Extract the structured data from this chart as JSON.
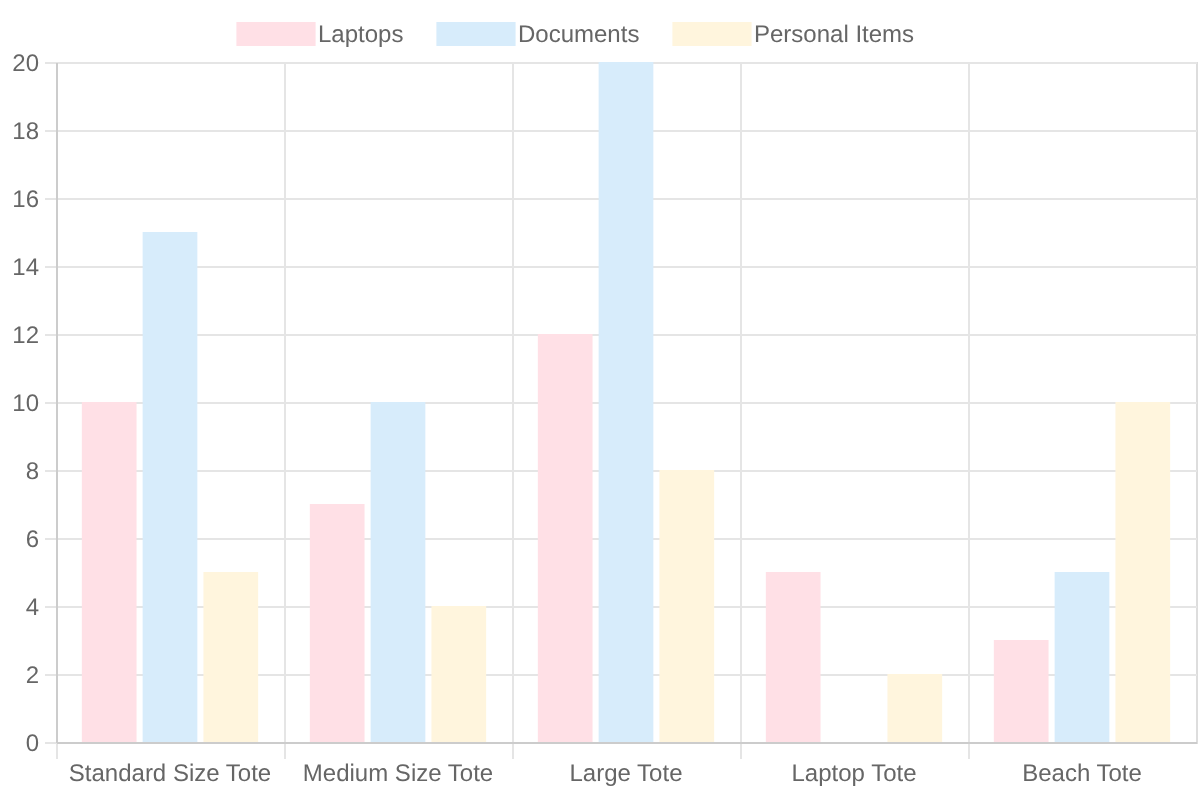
{
  "chart_data": {
    "type": "bar",
    "categories": [
      "Standard Size Tote",
      "Medium Size Tote",
      "Large Tote",
      "Laptop Tote",
      "Beach Tote"
    ],
    "series": [
      {
        "name": "Laptops",
        "color": "#ffe0e6",
        "values": [
          10,
          7,
          12,
          5,
          3
        ]
      },
      {
        "name": "Documents",
        "color": "#d7ecfb",
        "values": [
          15,
          10,
          20,
          0,
          5
        ]
      },
      {
        "name": "Personal Items",
        "color": "#fff5dd",
        "values": [
          5,
          4,
          8,
          2,
          10
        ]
      }
    ],
    "ylim": [
      0,
      20
    ],
    "yticks": [
      0,
      2,
      4,
      6,
      8,
      10,
      12,
      14,
      16,
      18,
      20
    ],
    "grid": true,
    "legend": "top"
  }
}
